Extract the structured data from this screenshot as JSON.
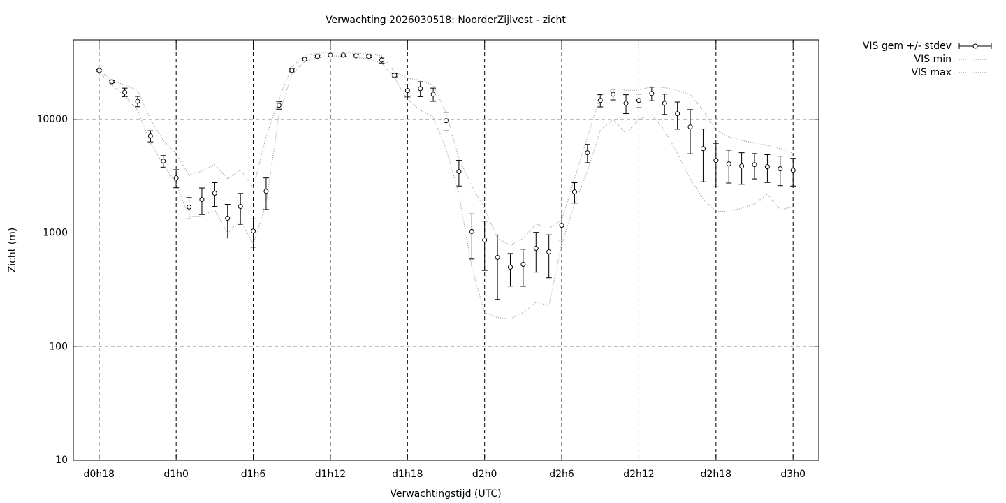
{
  "chart_data": {
    "type": "errorbar",
    "title": "Verwachting 2026030518: NoorderZijlvest - zicht",
    "x_label": "Verwachtingstijd (UTC)",
    "y_label": "Zicht (m)",
    "x": [
      18,
      19,
      20,
      21,
      22,
      23,
      24,
      25,
      26,
      27,
      28,
      29,
      30,
      31,
      32,
      33,
      34,
      35,
      36,
      37,
      38,
      39,
      40,
      41,
      42,
      43,
      44,
      45,
      46,
      47,
      48,
      49,
      50,
      51,
      52,
      53,
      54,
      55,
      56,
      57,
      58,
      59,
      60,
      61,
      62,
      63,
      64,
      65,
      66,
      67,
      68,
      69,
      70,
      71,
      72
    ],
    "series": [
      {
        "name": "VIS gem +/- stdev",
        "color": "#000000",
        "style": "errorbar",
        "values": [
          26900,
          21400,
          17300,
          14400,
          7130,
          4290,
          3050,
          1690,
          1970,
          2240,
          1345,
          1710,
          1040,
          2330,
          13270,
          26900,
          33700,
          35700,
          36700,
          36700,
          36100,
          35700,
          33200,
          24400,
          17900,
          18600,
          16600,
          9720,
          3470,
          1030,
          868,
          610,
          500,
          529,
          732,
          683,
          1166,
          2300,
          5080,
          14650,
          16600,
          13830,
          14650,
          16860,
          13830,
          11190,
          8570,
          5520,
          4350,
          4050,
          3880,
          3990,
          3830,
          3670,
          3560
        ],
        "errors": [
          500,
          500,
          1500,
          1500,
          800,
          500,
          550,
          360,
          520,
          530,
          440,
          520,
          290,
          720,
          1000,
          800,
          800,
          800,
          800,
          800,
          800,
          800,
          2000,
          800,
          2200,
          2800,
          2200,
          1800,
          880,
          440,
          400,
          350,
          160,
          190,
          280,
          280,
          300,
          470,
          930,
          1800,
          1800,
          2600,
          2000,
          2300,
          2800,
          3000,
          3600,
          2700,
          1800,
          1300,
          1200,
          1000,
          1050,
          1060,
          970
        ]
      },
      {
        "name": "VIS min",
        "color": "#a0a0a0",
        "style": "dotted",
        "values": [
          26000,
          20000,
          16000,
          12000,
          6200,
          4000,
          2700,
          1400,
          1400,
          1600,
          1000,
          1300,
          800,
          1800,
          11000,
          25000,
          32000,
          35000,
          36000,
          36000,
          35000,
          34000,
          31000,
          23000,
          15000,
          12000,
          10500,
          5500,
          2200,
          500,
          200,
          180,
          175,
          200,
          245,
          230,
          800,
          1800,
          3500,
          8000,
          10000,
          7500,
          10000,
          11000,
          8000,
          5000,
          3000,
          2000,
          1550,
          1550,
          1650,
          1800,
          2200,
          1600,
          1700
        ]
      },
      {
        "name": "VIS max",
        "color": "#a0a0a0",
        "style": "dotted",
        "values": [
          27000,
          22000,
          20000,
          18000,
          10000,
          6500,
          5000,
          3200,
          3500,
          4000,
          3000,
          3600,
          2500,
          7000,
          15000,
          29000,
          36000,
          38000,
          39000,
          39000,
          38000,
          38000,
          36000,
          26000,
          23000,
          22000,
          20000,
          11500,
          4500,
          2600,
          1640,
          900,
          780,
          900,
          1200,
          1100,
          1300,
          3000,
          7000,
          16000,
          18500,
          18000,
          18000,
          19500,
          19000,
          18000,
          16500,
          12000,
          8000,
          7000,
          6500,
          6200,
          5900,
          5500,
          5000
        ]
      }
    ],
    "xlim": [
      16,
      74
    ],
    "xticks": [
      {
        "value": 18,
        "label": "d0h18"
      },
      {
        "value": 24,
        "label": "d1h0"
      },
      {
        "value": 30,
        "label": "d1h6"
      },
      {
        "value": 36,
        "label": "d1h12"
      },
      {
        "value": 42,
        "label": "d1h18"
      },
      {
        "value": 48,
        "label": "d2h0"
      },
      {
        "value": 54,
        "label": "d2h6"
      },
      {
        "value": 60,
        "label": "d2h12"
      },
      {
        "value": 66,
        "label": "d2h18"
      },
      {
        "value": 72,
        "label": "d3h0"
      }
    ],
    "ylim": [
      10,
      50000
    ],
    "yticks": [
      10,
      100,
      1000,
      10000
    ],
    "y_scale": "log",
    "grid": true,
    "legend": "outside-top-right"
  }
}
